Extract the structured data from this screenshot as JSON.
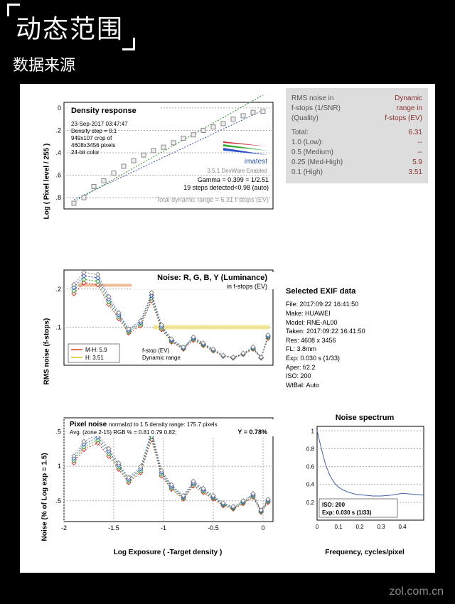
{
  "header": {
    "title": "动态范围",
    "subtitle": "数据来源"
  },
  "stats": {
    "header_left": "RMS noise in\nf-stops (1/SNR)\n(Quality)",
    "header_right": "Dynamic\nrange in\nf-stops (EV)",
    "rows": [
      {
        "label": "Total:",
        "value": "6.31"
      },
      {
        "label": "1.0   (Low):",
        "value": "--"
      },
      {
        "label": "0.5   (Medium)",
        "value": "--"
      },
      {
        "label": "0.25 (Med-High)",
        "value": "5.9"
      },
      {
        "label": "0.1   (High)",
        "value": "3.51"
      }
    ],
    "label_color": "#555",
    "value_color": "#8b3030"
  },
  "exif": {
    "title": "Selected EXIF data",
    "rows": [
      "File:  2017:09:22 16:41:50",
      "Make:  HUAWEI",
      "Model: RNE-AL00",
      "Taken: 2017:09:22 16:41:50",
      "Res:   4608 x 3456",
      "FL:   3.8mm",
      "Exp:  0.030 s   (1/33)",
      "Aper: f/2.2",
      "ISO:   200",
      "WtBal: Auto"
    ]
  },
  "chart1": {
    "title": "Density response",
    "meta": [
      "23-Sep-2017 03:47:47",
      "Density step = 0.1",
      "949x107 crop of",
      "4608x3456 pixels",
      "24-bit color"
    ],
    "ylabel": "Log ( Pixel level / 255 )",
    "yticks": [
      0,
      -0.2,
      -0.4,
      -0.6,
      -0.8
    ],
    "ylim": [
      -0.9,
      0.05
    ],
    "xlim": [
      -2.0,
      0.1
    ],
    "gamma_text": "Gamma = 0.399 = 1/2.51",
    "steps_text": "19 steps detected<0.98 (auto)",
    "total_dr": "Total dynamic range = 6.31 f-stops (EV)",
    "brand": "imatest",
    "version": "3.5.1  DevWare Enabled",
    "data_x": [
      -1.9,
      -1.8,
      -1.7,
      -1.6,
      -1.5,
      -1.4,
      -1.3,
      -1.2,
      -1.1,
      -1.0,
      -0.9,
      -0.8,
      -0.7,
      -0.6,
      -0.5,
      -0.4,
      -0.3,
      -0.2,
      -0.1,
      0
    ],
    "data_y": [
      -0.85,
      -0.8,
      -0.7,
      -0.65,
      -0.58,
      -0.52,
      -0.47,
      -0.42,
      -0.38,
      -0.35,
      -0.31,
      -0.27,
      -0.24,
      -0.2,
      -0.17,
      -0.14,
      -0.1,
      -0.07,
      -0.04,
      -0.03
    ],
    "marker_color": "#888",
    "marker_fill": "#eee",
    "line1_color": "#3355aa",
    "line2_color": "#2a8a2a",
    "bg": "#fff",
    "grid_color": "#aaa"
  },
  "chart2": {
    "title": "Noise: R, G, B, Y (Luminance)",
    "sub": "in f-stops (EV)",
    "ylabel": "RMS noise (f-stops)",
    "yticks": [
      0.1,
      0.2
    ],
    "ylim": [
      0,
      0.25
    ],
    "xlim": [
      -2.0,
      0.1
    ],
    "legend": [
      {
        "label": "M-H:",
        "value": "5.9",
        "color": "#e07050"
      },
      {
        "label": "   H:",
        "value": "3.51",
        "color": "#e0d050"
      }
    ],
    "sub_text": [
      "f-stop (EV)",
      "Dynamic range"
    ],
    "data_x": [
      -1.9,
      -1.8,
      -1.66,
      -1.55,
      -1.45,
      -1.35,
      -1.23,
      -1.12,
      -1.02,
      -0.92,
      -0.8,
      -0.7,
      -0.6,
      -0.5,
      -0.4,
      -0.3,
      -0.2,
      -0.1,
      -0.02,
      0.05
    ],
    "data_y": [
      0.2,
      0.23,
      0.225,
      0.17,
      0.13,
      0.09,
      0.11,
      0.18,
      0.1,
      0.065,
      0.045,
      0.07,
      0.055,
      0.04,
      0.025,
      0.02,
      0.03,
      0.045,
      0.02,
      0.075
    ],
    "colors": {
      "r": "#cc3333",
      "g": "#33aa33",
      "b": "#3355cc",
      "y": "#888"
    },
    "orange_bar_y": 0.21,
    "yellow_bar_y": 0.1,
    "bg": "#fff"
  },
  "chart3": {
    "title": "Pixel noise",
    "title_sub": "normalzd to 1.5 density range: 175.7 pixels",
    "avg_text": "Avg. (zone 2-15) RGB % =  0.81   0.79  0.82;",
    "y_text": "Y = 0.78%",
    "ylabel": "Noise (% of Log exp = 1.5)",
    "xlabel": "Log Exposure ( -Target density )",
    "yticks": [
      0.5,
      1,
      1.5
    ],
    "xticks": [
      -2,
      -1.5,
      -1,
      -0.5,
      0
    ],
    "ylim": [
      0.2,
      1.7
    ],
    "xlim": [
      -2.0,
      0.1
    ],
    "data_x": [
      -1.9,
      -1.8,
      -1.66,
      -1.55,
      -1.45,
      -1.35,
      -1.23,
      -1.12,
      -1.02,
      -0.92,
      -0.8,
      -0.7,
      -0.6,
      -0.5,
      -0.4,
      -0.3,
      -0.2,
      -0.1,
      -0.02,
      0.05
    ],
    "data_y": [
      1.1,
      1.3,
      1.4,
      1.2,
      1.0,
      0.8,
      0.95,
      1.45,
      0.9,
      0.7,
      0.55,
      0.75,
      0.65,
      0.55,
      0.45,
      0.4,
      0.48,
      0.58,
      0.35,
      0.5
    ],
    "bg": "#fff"
  },
  "chart4": {
    "title": "Noise spectrum",
    "xlabel": "Frequency, cycles/pixel",
    "ylim": [
      0,
      1.05
    ],
    "xlim": [
      0,
      0.5
    ],
    "yticks": [
      0.2,
      0.4,
      0.6,
      0.8,
      1
    ],
    "xticks": [
      0,
      0.1,
      0.2,
      0.3,
      0.4
    ],
    "data_x": [
      0.0,
      0.02,
      0.04,
      0.06,
      0.08,
      0.1,
      0.12,
      0.15,
      0.18,
      0.22,
      0.26,
      0.3,
      0.35,
      0.4,
      0.45,
      0.5
    ],
    "data_y": [
      1.0,
      0.8,
      0.62,
      0.5,
      0.42,
      0.37,
      0.34,
      0.31,
      0.29,
      0.28,
      0.27,
      0.27,
      0.28,
      0.3,
      0.29,
      0.28
    ],
    "line_color": "#4060a0",
    "iso_text": "ISO:   200",
    "exp_text": "Exp:   0.030 s   (1/33)",
    "bg": "#fff"
  },
  "footer": "zol.com.cn"
}
